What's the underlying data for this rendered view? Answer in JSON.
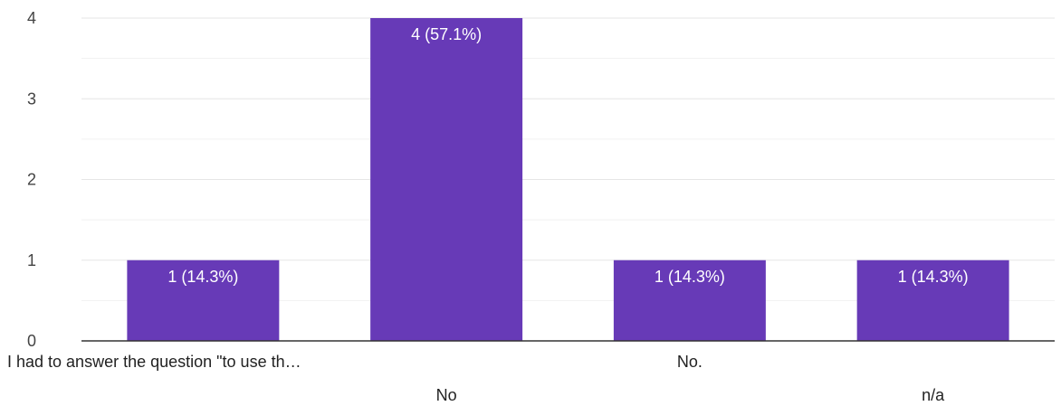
{
  "chart_data": {
    "type": "bar",
    "categories": [
      "I had to answer the question \"to use th…",
      "No",
      "No.",
      "n/a"
    ],
    "values": [
      1,
      4,
      1,
      1
    ],
    "data_labels": [
      "1 (14.3%)",
      "4 (57.1%)",
      "1 (14.3%)",
      "1 (14.3%)"
    ],
    "ylim": [
      0,
      4
    ],
    "yticks": [
      "0",
      "1",
      "2",
      "3",
      "4"
    ],
    "grid": true,
    "colors": {
      "bar": "#673ab7",
      "grid": "#e6e6e6",
      "axis": "#333333"
    }
  }
}
